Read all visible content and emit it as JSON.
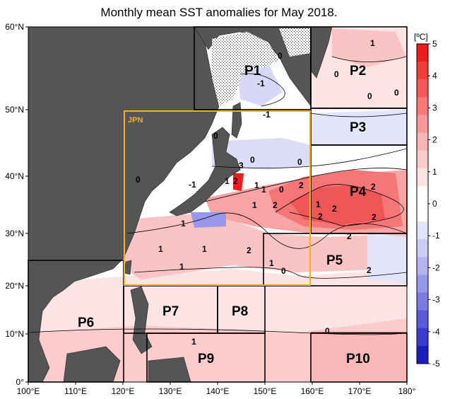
{
  "title": "Monthly mean SST anomalies for May 2018.",
  "colorbar": {
    "unit": "[ºC]",
    "ticks": [
      "5",
      "4",
      "3",
      "2",
      "1",
      "0",
      "-1",
      "-2",
      "-3",
      "-4",
      "-5"
    ],
    "colors": [
      "#ee1c1c",
      "#f23c3c",
      "#f55a5a",
      "#f77a7a",
      "#f99898",
      "#fab4b4",
      "#fccccc",
      "#fde4e4",
      "#ffffff",
      "#ffffff",
      "#e4e4fb",
      "#ccccf6",
      "#b4b4f0",
      "#9898ea",
      "#7a7ae2",
      "#5a5ad8",
      "#3c3ccc",
      "#1c1cbe"
    ]
  },
  "axes": {
    "lat_labels": [
      "60°N",
      "50°N",
      "40°N",
      "30°N",
      "20°N",
      "10°N",
      "0°"
    ],
    "lon_labels": [
      "100°E",
      "110°E",
      "120°E",
      "130°E",
      "140°E",
      "150°E",
      "160°E",
      "170°E",
      "180°"
    ]
  },
  "regions": {
    "jpn": "JPN",
    "p1": "P1",
    "p2": "P2",
    "p3": "P3",
    "p4": "P4",
    "p5": "P5",
    "p6": "P6",
    "p7": "P7",
    "p8": "P8",
    "p9": "P9",
    "p10": "P10"
  },
  "contour_labels": [
    {
      "text": "1"
    },
    {
      "text": "0"
    },
    {
      "text": "-1"
    },
    {
      "text": "0"
    },
    {
      "text": "0"
    },
    {
      "text": "0"
    },
    {
      "text": "-1"
    },
    {
      "text": "0"
    },
    {
      "text": "0"
    },
    {
      "text": "3"
    },
    {
      "text": "0"
    },
    {
      "text": "0"
    },
    {
      "text": "1"
    },
    {
      "text": "-1"
    },
    {
      "text": "2"
    },
    {
      "text": "1"
    },
    {
      "text": "1"
    },
    {
      "text": "0"
    },
    {
      "text": "2"
    },
    {
      "text": "2"
    },
    {
      "text": "2"
    },
    {
      "text": "1"
    },
    {
      "text": "2"
    },
    {
      "text": "1"
    },
    {
      "text": "2"
    },
    {
      "text": "2"
    },
    {
      "text": "2"
    },
    {
      "text": "1"
    },
    {
      "text": "1"
    },
    {
      "text": "1"
    },
    {
      "text": "2"
    },
    {
      "text": "1"
    },
    {
      "text": "0"
    },
    {
      "text": "2"
    },
    {
      "text": "1"
    },
    {
      "text": "0"
    },
    {
      "text": "1"
    }
  ]
}
